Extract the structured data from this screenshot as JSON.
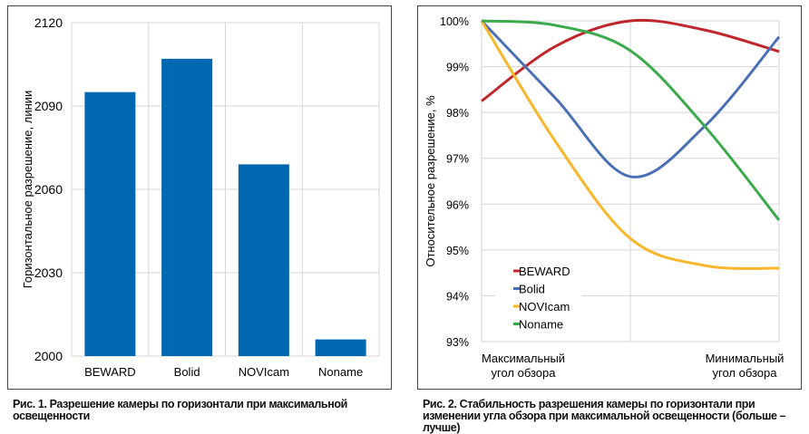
{
  "chart_data": [
    {
      "type": "bar",
      "caption": "Рис. 1. Разрешение камеры по горизонтали при максимальной освещенности",
      "categories": [
        "BEWARD",
        "Bolid",
        "NOVIcam",
        "Noname"
      ],
      "values": [
        2095,
        2107,
        2069,
        2006
      ],
      "ylabel": "Горизонтальное разрешение, линии",
      "xlabel": "",
      "ylim": [
        2000,
        2120
      ],
      "yticks": [
        "2000",
        "2030",
        "2060",
        "2090",
        "2120"
      ],
      "grid": true,
      "color": "#0067b1"
    },
    {
      "type": "line",
      "caption": "Рис. 2. Стабильность разрешения камеры по горизонтали при изменении угла обзора при максимальной освещенности (больше – лучше)",
      "ylabel": "Относительное разрешение, %",
      "x_labels": [
        "Максимальный угол обзора",
        "Минимальный угол обзора"
      ],
      "x": [
        0,
        0.25,
        0.5,
        0.75,
        1
      ],
      "ylim": [
        93,
        100
      ],
      "yticks": [
        "93%",
        "94%",
        "95%",
        "96%",
        "97%",
        "98%",
        "99%",
        "100%"
      ],
      "grid": true,
      "legend_position": "bottom-left",
      "series": [
        {
          "name": "BEWARD",
          "color": "#c0272d",
          "values": [
            98.25,
            99.45,
            100,
            99.8,
            99.33
          ]
        },
        {
          "name": "Bolid",
          "color": "#4a6fb5",
          "values": [
            100,
            98.3,
            96.6,
            97.7,
            99.65
          ]
        },
        {
          "name": "NOVIcam",
          "color": "#f7b62b",
          "values": [
            100,
            97.35,
            95.25,
            94.66,
            94.6
          ]
        },
        {
          "name": "Noname",
          "color": "#3aaa4a",
          "values": [
            100,
            99.9,
            99.35,
            97.7,
            95.65
          ]
        }
      ]
    }
  ]
}
